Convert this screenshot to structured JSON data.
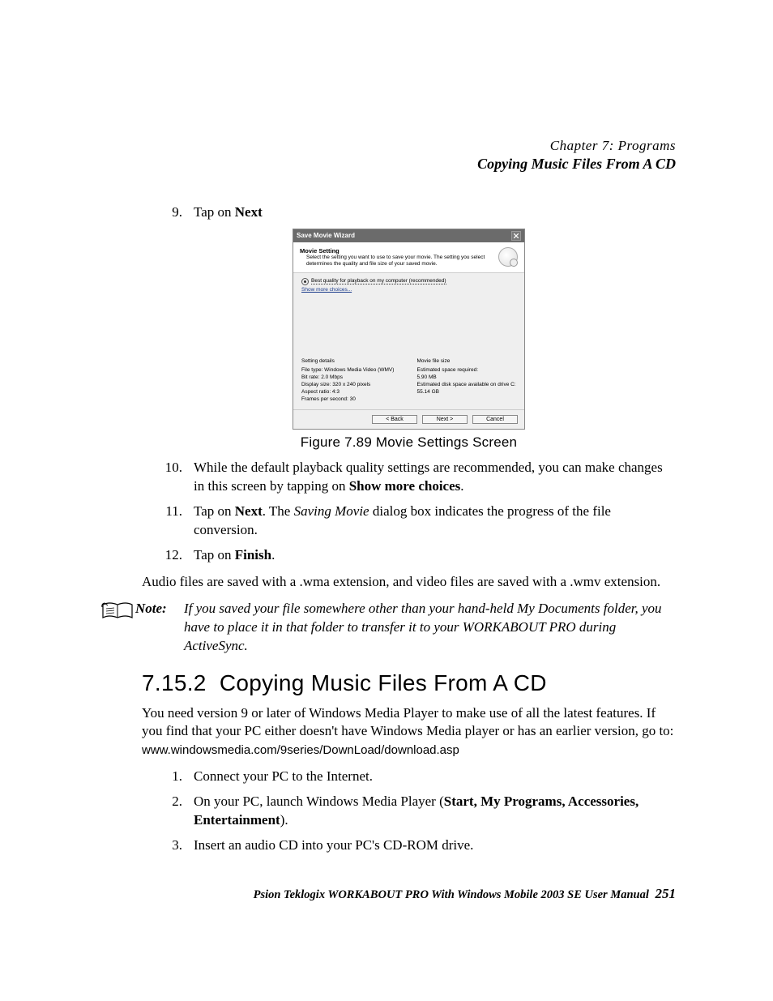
{
  "header": {
    "chapter": "Chapter 7: Programs",
    "title": "Copying Music Files From A CD"
  },
  "steps_a": [
    {
      "num": "9.",
      "pre": "Tap on ",
      "bold": "Next",
      "post": ""
    }
  ],
  "wizard": {
    "title": "Save Movie Wizard",
    "section_title": "Movie Setting",
    "section_desc": "Select the setting you want to use to save your movie. The setting you select determines the quality and file size of your saved movie.",
    "radio_label": "Best quality for playback on my computer (recommended)",
    "link": "Show more choices...",
    "left_h": "Setting details",
    "left_lines": [
      "File type: Windows Media Video (WMV)",
      "Bit rate: 2.0 Mbps",
      "Display size: 320 x 240 pixels",
      "Aspect ratio: 4:3",
      "Frames per second: 30"
    ],
    "right_h": "Movie file size",
    "right_lines": [
      "Estimated space required:",
      "5.90 MB",
      "",
      "Estimated disk space available on drive C:",
      "55.14 GB"
    ],
    "btn_back": "< Back",
    "btn_next": "Next >",
    "btn_cancel": "Cancel"
  },
  "figure_caption": "Figure 7.89 Movie Settings Screen",
  "steps_b": [
    {
      "num": "10.",
      "html": "While the default playback quality settings are recommended, you can make changes in this screen by tapping on <b>Show more choices</b>."
    },
    {
      "num": "11.",
      "html": "Tap on <b>Next</b>. The <i>Saving Movie</i> dialog box indicates the progress of the file conversion."
    },
    {
      "num": "12.",
      "html": "Tap on <b>Finish</b>."
    }
  ],
  "para_audio": "Audio files are saved with a .wma extension, and video files are saved with a .wmv extension.",
  "note": {
    "label": "Note:",
    "body": "If you saved your file somewhere other than your hand-held My Documents folder, you have to place it in that folder to transfer it to your WORKABOUT PRO during ActiveSync."
  },
  "section": {
    "num": "7.15.2",
    "title": "Copying Music Files From A CD"
  },
  "para_intro_a": "You need version 9 or later of Windows Media Player to make use of all the latest features. If you find that your PC either doesn't have Windows Media player or has an earlier version, go to: ",
  "para_intro_url": "www.windowsmedia.com/9series/DownLoad/download.asp",
  "steps_c": [
    {
      "num": "1.",
      "html": "Connect your PC to the Internet."
    },
    {
      "num": "2.",
      "html": "On your PC, launch Windows Media Player (<b>Start, My Programs, Accessories, Entertainment</b>)."
    },
    {
      "num": "3.",
      "html": "Insert an audio CD into your PC's CD-ROM drive."
    }
  ],
  "footer": {
    "text": "Psion Teklogix WORKABOUT PRO With Windows Mobile 2003 SE User Manual",
    "page": "251"
  }
}
